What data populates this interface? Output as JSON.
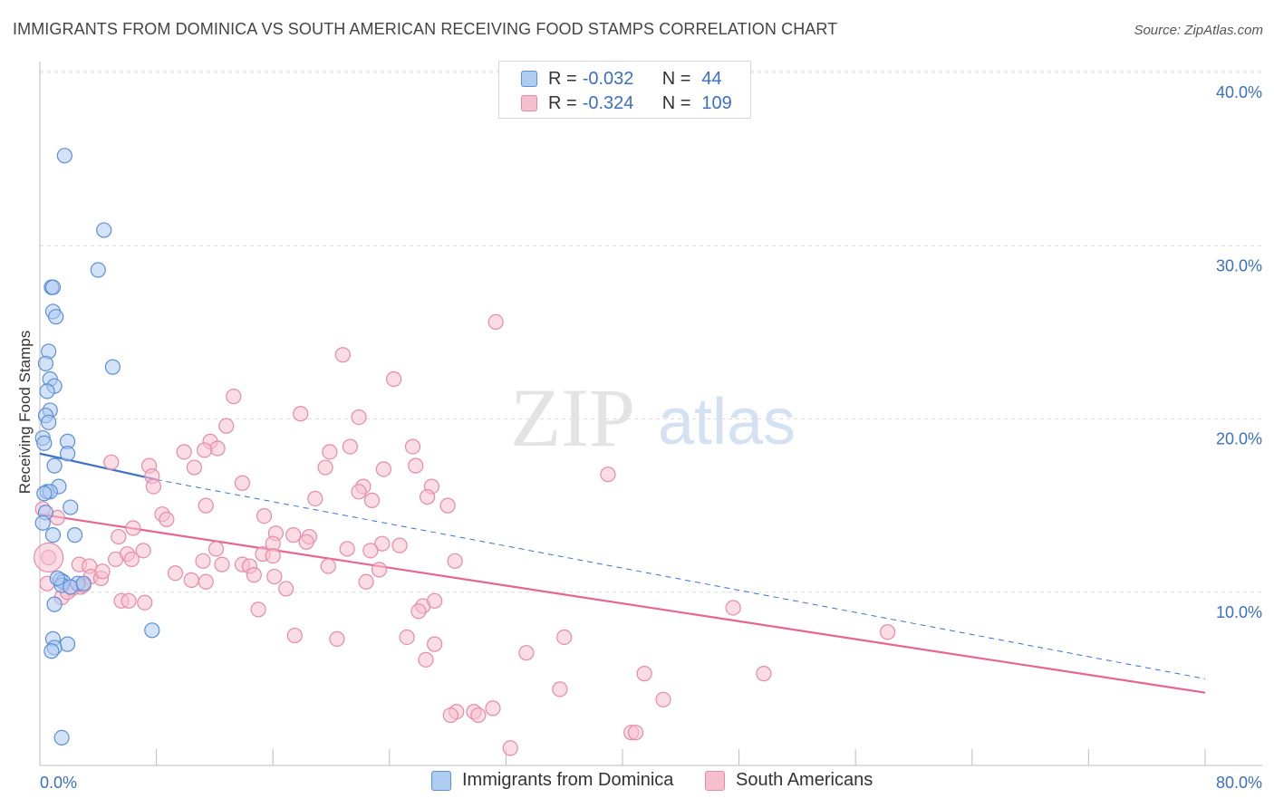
{
  "header": {
    "title": "IMMIGRANTS FROM DOMINICA VS SOUTH AMERICAN RECEIVING FOOD STAMPS CORRELATION CHART",
    "source": "Source: ZipAtlas.com"
  },
  "legend_top": {
    "rows": [
      {
        "r_label": "R = ",
        "r_value": "-0.032",
        "n_label": "N = ",
        "n_value": "44"
      },
      {
        "r_label": "R = ",
        "r_value": "-0.324",
        "n_label": "N = ",
        "n_value": "109"
      }
    ]
  },
  "legend_bottom": {
    "items": [
      {
        "label": "Immigrants from Dominica"
      },
      {
        "label": "South Americans"
      }
    ]
  },
  "colors": {
    "blue_fill": "#aecbf0",
    "blue_stroke": "#5b8fd6",
    "blue_line": "#3a72c9",
    "pink_fill": "#f6bfd0",
    "pink_stroke": "#e68aa8",
    "pink_line": "#e66592",
    "tick_label": "#3a6fc4",
    "grid": "#dcdcdc"
  },
  "watermark": {
    "part1": "ZIP",
    "part2": "atlas"
  },
  "chart_data": {
    "type": "scatter",
    "title": "IMMIGRANTS FROM DOMINICA VS SOUTH AMERICAN RECEIVING FOOD STAMPS CORRELATION CHART",
    "xlabel": "",
    "ylabel": "Receiving Food Stamps",
    "xlim": [
      0,
      80
    ],
    "ylim": [
      0,
      40
    ],
    "x_tick_labels": [
      "0.0%",
      "80.0%"
    ],
    "y_ticks": [
      10,
      20,
      30,
      40
    ],
    "y_tick_labels": [
      "10.0%",
      "20.0%",
      "30.0%",
      "40.0%"
    ],
    "grid": true,
    "series": [
      {
        "name": "Immigrants from Dominica",
        "r": -0.032,
        "n": 44,
        "trend_solid": [
          [
            0,
            18.0
          ],
          [
            8,
            16.5
          ]
        ],
        "trend_dashed": [
          [
            8,
            16.5
          ],
          [
            80,
            5.0
          ]
        ],
        "points": [
          [
            1.7,
            35.2
          ],
          [
            4.4,
            30.9
          ],
          [
            4.0,
            28.6
          ],
          [
            0.8,
            27.6
          ],
          [
            0.9,
            27.6
          ],
          [
            0.9,
            26.2
          ],
          [
            1.1,
            25.9
          ],
          [
            5.0,
            23.0
          ],
          [
            0.6,
            23.9
          ],
          [
            0.4,
            23.2
          ],
          [
            0.7,
            22.3
          ],
          [
            1.0,
            21.9
          ],
          [
            0.5,
            21.6
          ],
          [
            0.7,
            20.5
          ],
          [
            0.4,
            20.2
          ],
          [
            0.6,
            19.8
          ],
          [
            0.2,
            18.9
          ],
          [
            1.9,
            18.7
          ],
          [
            0.3,
            18.6
          ],
          [
            1.9,
            18.0
          ],
          [
            1.0,
            17.3
          ],
          [
            1.3,
            16.1
          ],
          [
            0.5,
            15.8
          ],
          [
            0.7,
            15.8
          ],
          [
            0.3,
            15.7
          ],
          [
            2.1,
            14.9
          ],
          [
            0.4,
            14.6
          ],
          [
            0.2,
            14.0
          ],
          [
            2.4,
            13.3
          ],
          [
            0.9,
            13.3
          ],
          [
            1.4,
            10.7
          ],
          [
            1.6,
            10.6
          ],
          [
            2.6,
            10.5
          ],
          [
            1.5,
            10.4
          ],
          [
            2.1,
            10.3
          ],
          [
            3.0,
            10.5
          ],
          [
            1.0,
            9.3
          ],
          [
            7.7,
            7.8
          ],
          [
            0.9,
            7.3
          ],
          [
            1.9,
            7.0
          ],
          [
            1.0,
            6.8
          ],
          [
            0.8,
            6.6
          ],
          [
            1.5,
            1.6
          ],
          [
            1.2,
            10.8
          ]
        ]
      },
      {
        "name": "South Americans",
        "r": -0.324,
        "n": 109,
        "trend_solid": [
          [
            0,
            14.5
          ],
          [
            80,
            4.2
          ]
        ],
        "points": [
          [
            31.3,
            25.6
          ],
          [
            20.8,
            23.7
          ],
          [
            24.3,
            22.3
          ],
          [
            13.3,
            21.3
          ],
          [
            17.9,
            20.3
          ],
          [
            21.9,
            20.1
          ],
          [
            12.8,
            19.6
          ],
          [
            11.7,
            18.7
          ],
          [
            12.2,
            18.3
          ],
          [
            25.6,
            18.4
          ],
          [
            9.9,
            18.1
          ],
          [
            19.9,
            18.1
          ],
          [
            21.3,
            18.4
          ],
          [
            11.3,
            18.2
          ],
          [
            4.9,
            17.5
          ],
          [
            7.5,
            17.3
          ],
          [
            10.6,
            17.2
          ],
          [
            19.6,
            17.2
          ],
          [
            25.8,
            17.3
          ],
          [
            23.6,
            17.1
          ],
          [
            39.0,
            16.8
          ],
          [
            7.7,
            16.7
          ],
          [
            13.9,
            16.3
          ],
          [
            22.2,
            16.1
          ],
          [
            7.8,
            16.1
          ],
          [
            26.9,
            16.1
          ],
          [
            18.9,
            15.4
          ],
          [
            21.9,
            15.8
          ],
          [
            22.8,
            15.3
          ],
          [
            26.6,
            15.5
          ],
          [
            28.0,
            15.0
          ],
          [
            11.4,
            15.0
          ],
          [
            8.4,
            14.5
          ],
          [
            15.4,
            14.4
          ],
          [
            8.7,
            14.2
          ],
          [
            6.4,
            13.7
          ],
          [
            16.2,
            13.4
          ],
          [
            17.4,
            13.3
          ],
          [
            18.5,
            13.2
          ],
          [
            5.4,
            13.2
          ],
          [
            16.0,
            12.8
          ],
          [
            18.3,
            12.9
          ],
          [
            23.5,
            12.8
          ],
          [
            24.7,
            12.7
          ],
          [
            7.1,
            12.4
          ],
          [
            12.1,
            12.5
          ],
          [
            15.3,
            12.2
          ],
          [
            16.0,
            12.1
          ],
          [
            21.1,
            12.5
          ],
          [
            22.7,
            12.4
          ],
          [
            6.0,
            12.2
          ],
          [
            5.2,
            11.9
          ],
          [
            2.7,
            11.6
          ],
          [
            3.4,
            11.5
          ],
          [
            6.3,
            11.9
          ],
          [
            11.2,
            11.8
          ],
          [
            12.5,
            11.6
          ],
          [
            13.9,
            11.6
          ],
          [
            14.4,
            11.5
          ],
          [
            19.8,
            11.5
          ],
          [
            23.3,
            11.3
          ],
          [
            28.5,
            11.8
          ],
          [
            9.3,
            11.1
          ],
          [
            11.4,
            10.6
          ],
          [
            3.5,
            10.9
          ],
          [
            4.2,
            10.8
          ],
          [
            14.7,
            11.0
          ],
          [
            16.1,
            10.9
          ],
          [
            22.4,
            10.6
          ],
          [
            10.4,
            10.7
          ],
          [
            16.9,
            10.2
          ],
          [
            2.2,
            10.2
          ],
          [
            2.8,
            10.3
          ],
          [
            1.5,
            9.7
          ],
          [
            1.9,
            10.0
          ],
          [
            3.0,
            10.4
          ],
          [
            5.6,
            9.5
          ],
          [
            7.2,
            9.4
          ],
          [
            6.1,
            9.5
          ],
          [
            26.3,
            9.2
          ],
          [
            27.1,
            9.5
          ],
          [
            26.0,
            8.9
          ],
          [
            15.0,
            9.0
          ],
          [
            47.6,
            9.1
          ],
          [
            17.5,
            7.5
          ],
          [
            20.4,
            7.3
          ],
          [
            25.2,
            7.4
          ],
          [
            27.1,
            7.0
          ],
          [
            36.0,
            7.4
          ],
          [
            33.4,
            6.5
          ],
          [
            58.2,
            7.7
          ],
          [
            26.5,
            6.1
          ],
          [
            41.5,
            5.3
          ],
          [
            49.7,
            5.3
          ],
          [
            35.7,
            4.4
          ],
          [
            42.8,
            3.8
          ],
          [
            31.1,
            3.3
          ],
          [
            28.6,
            3.1
          ],
          [
            28.2,
            2.9
          ],
          [
            29.8,
            3.1
          ],
          [
            30.1,
            2.9
          ],
          [
            40.6,
            1.9
          ],
          [
            40.9,
            1.9
          ],
          [
            32.3,
            1.0
          ],
          [
            0.6,
            12.0
          ],
          [
            0.5,
            10.5
          ],
          [
            1.2,
            14.3
          ],
          [
            4.3,
            11.2
          ],
          [
            0.2,
            14.8
          ]
        ]
      }
    ]
  }
}
